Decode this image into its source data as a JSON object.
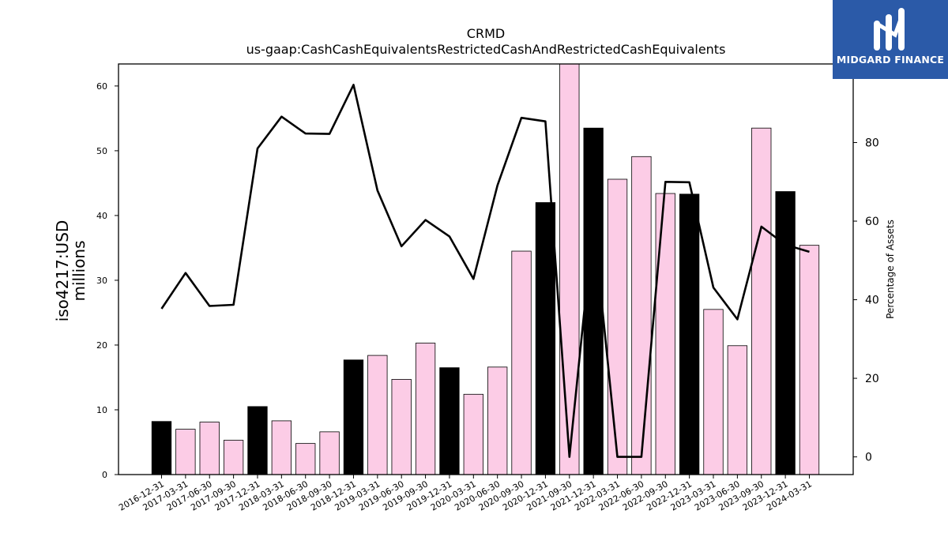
{
  "brand": {
    "name": "MIDGARD FINANCE",
    "color": "#2b5aa8"
  },
  "chart_data": {
    "type": "bar",
    "title": "CRMD",
    "subtitle": "us-gaap:CashCashEquivalentsRestrictedCashAndRestrictedCashEquivalents",
    "ylabel_line1": "iso4217:USD",
    "ylabel_line2": "millions",
    "y2label": "Percentage of Assets",
    "ylim": [
      0,
      63.4
    ],
    "y2lim": [
      -4.5,
      100
    ],
    "yticks": [
      0,
      10,
      20,
      30,
      40,
      50,
      60
    ],
    "y2ticks": [
      0,
      20,
      40,
      60,
      80
    ],
    "grid": false,
    "legend": "none",
    "categories": [
      "2016-12-31",
      "2017-03-31",
      "2017-06-30",
      "2017-09-30",
      "2017-12-31",
      "2018-03-31",
      "2018-06-30",
      "2018-09-30",
      "2018-12-31",
      "2019-03-31",
      "2019-06-30",
      "2019-09-30",
      "2019-12-31",
      "2020-03-31",
      "2020-06-30",
      "2020-09-30",
      "2020-12-31",
      "2021-09-30",
      "2021-12-31",
      "2022-03-31",
      "2022-06-30",
      "2022-09-30",
      "2022-12-31",
      "2023-03-31",
      "2023-06-30",
      "2023-09-30",
      "2023-12-31",
      "2024-03-31"
    ],
    "series": [
      {
        "type": "bar",
        "values": [
          8.2,
          7.0,
          8.1,
          5.3,
          10.5,
          8.3,
          4.8,
          6.6,
          17.7,
          18.4,
          14.7,
          20.3,
          16.5,
          12.4,
          16.6,
          34.5,
          42.0,
          63.4,
          53.5,
          45.6,
          49.1,
          43.4,
          43.3,
          25.5,
          19.9,
          53.5,
          43.7,
          35.4
        ],
        "colors": [
          "#000000",
          "#fccce6",
          "#fccce6",
          "#fccce6",
          "#000000",
          "#fccce6",
          "#fccce6",
          "#fccce6",
          "#000000",
          "#fccce6",
          "#fccce6",
          "#fccce6",
          "#000000",
          "#fccce6",
          "#fccce6",
          "#fccce6",
          "#000000",
          "#fccce6",
          "#000000",
          "#fccce6",
          "#fccce6",
          "#fccce6",
          "#000000",
          "#fccce6",
          "#fccce6",
          "#fccce6",
          "#000000",
          "#fccce6"
        ]
      },
      {
        "type": "line",
        "axis": "right",
        "color": "#000000",
        "values": [
          37.7,
          46.8,
          38.4,
          38.7,
          78.5,
          86.6,
          82.3,
          82.2,
          94.7,
          67.8,
          53.6,
          60.3,
          56.1,
          45.3,
          69.1,
          86.3,
          85.4,
          0.0,
          60.0,
          0.0,
          0.0,
          70.0,
          69.9,
          43.1,
          35.0,
          58.6,
          54.0,
          52.2
        ]
      }
    ]
  }
}
